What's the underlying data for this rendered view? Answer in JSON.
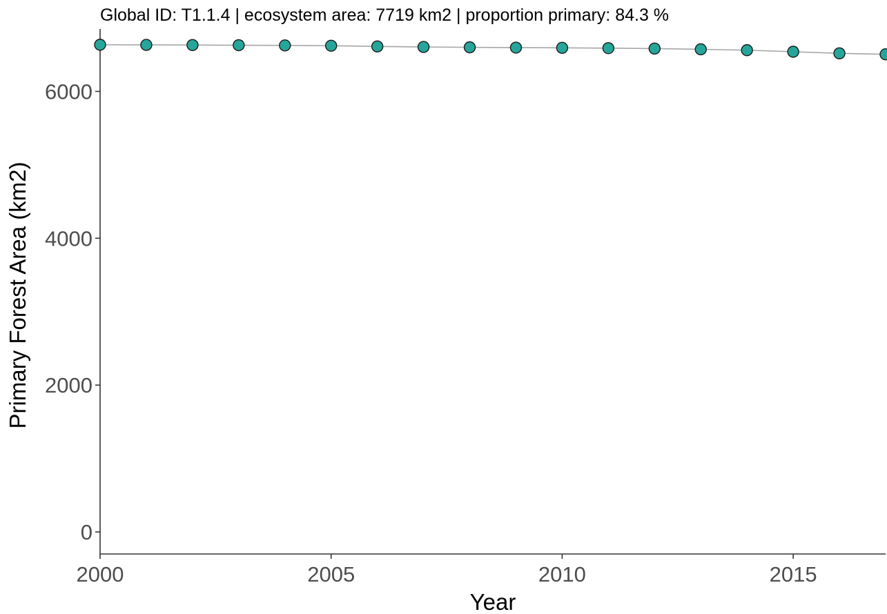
{
  "chart_data": {
    "type": "line",
    "title": "Global ID:  T1.1.4  | ecosystem area:  7719 km2 | proportion primary:  84.3 %",
    "xlabel": "Year",
    "ylabel": "Primary Forest Area (km2)",
    "xlim": [
      2000,
      2017
    ],
    "ylim": [
      -300,
      6850
    ],
    "x_ticks": [
      2000,
      2005,
      2010,
      2015
    ],
    "y_ticks": [
      0,
      2000,
      4000,
      6000
    ],
    "grid": false,
    "legend": "none",
    "point_color": "#26a69a",
    "point_stroke": "#1a1a1a",
    "line_color": "#a6a6a6",
    "series": [
      {
        "x": [
          2000,
          2001,
          2002,
          2003,
          2004,
          2005,
          2006,
          2007,
          2008,
          2009,
          2010,
          2011,
          2012,
          2013,
          2014,
          2015,
          2016,
          2017
        ],
        "values": [
          6635,
          6633,
          6631,
          6629,
          6626,
          6622,
          6612,
          6605,
          6600,
          6596,
          6593,
          6589,
          6583,
          6573,
          6561,
          6540,
          6518,
          6505
        ]
      }
    ]
  }
}
